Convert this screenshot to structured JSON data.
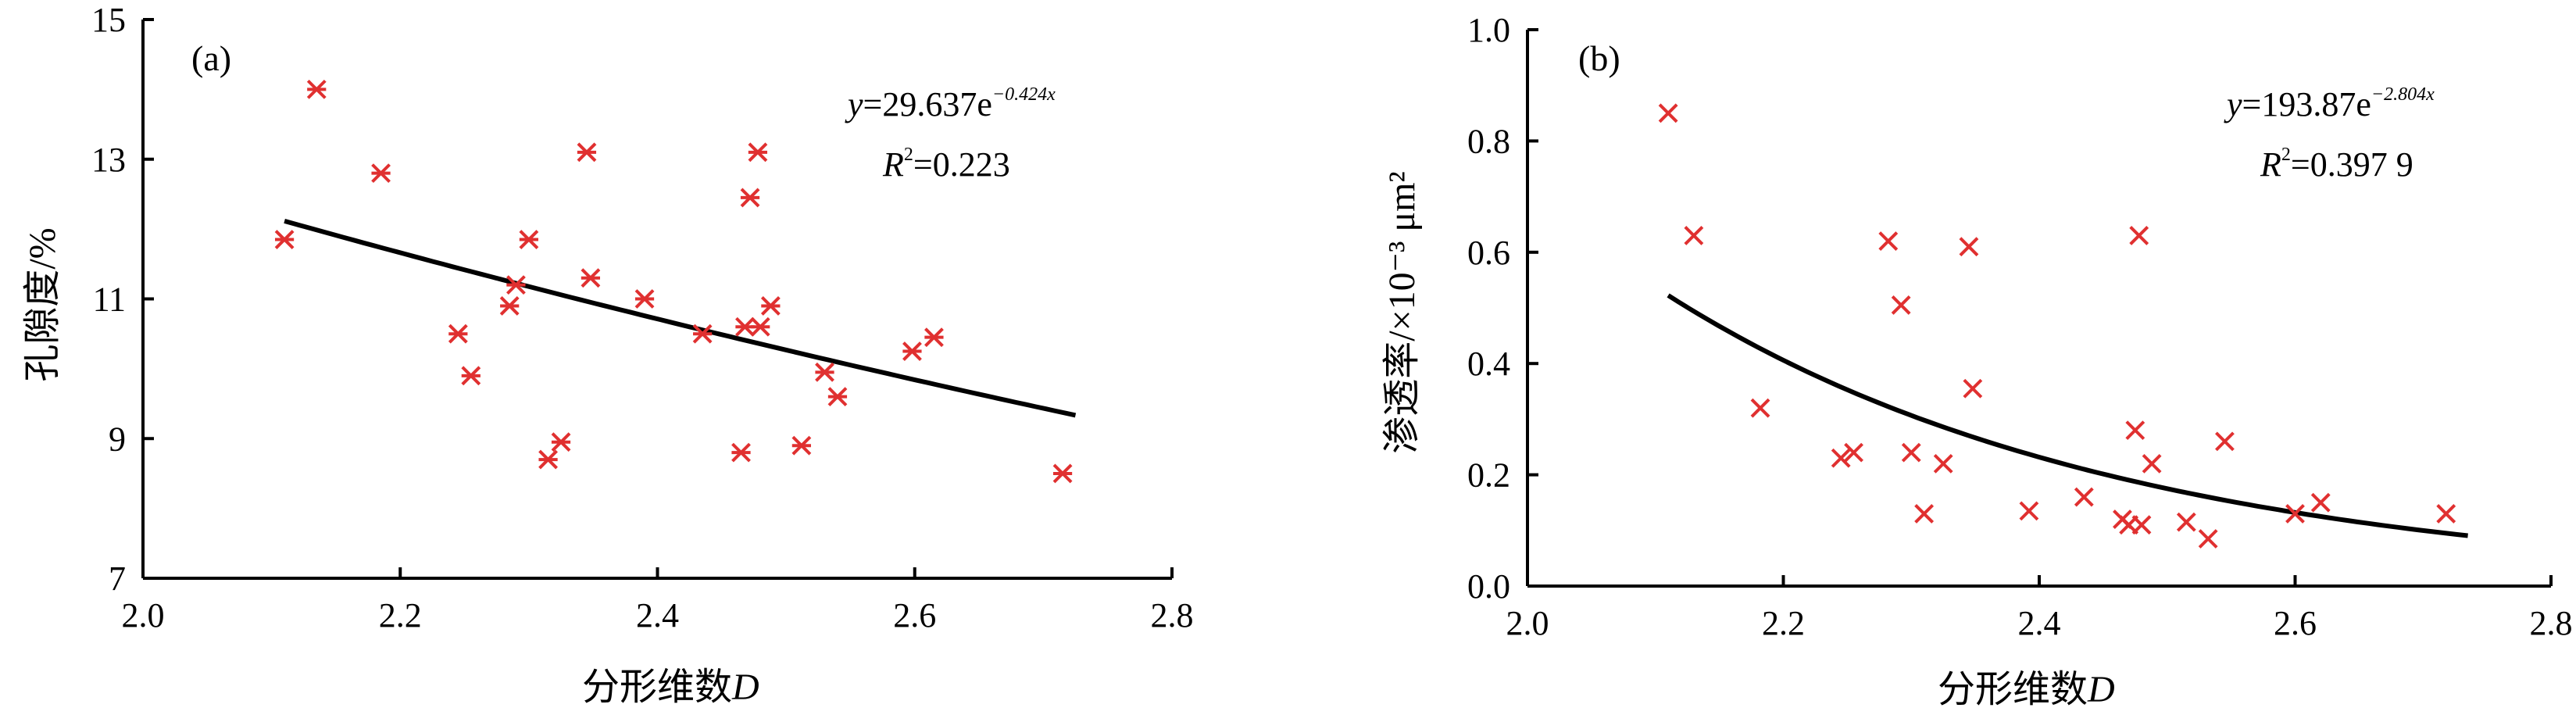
{
  "chart_data": [
    {
      "id": "a",
      "type": "scatter",
      "panel_label": "(a)",
      "xlabel": "分形维数D",
      "ylabel": "孔隙度/%",
      "xlim": [
        2.0,
        2.8
      ],
      "ylim": [
        7,
        15
      ],
      "x_ticks": [
        "2.0",
        "2.2",
        "2.4",
        "2.6",
        "2.8"
      ],
      "y_ticks": [
        "7",
        "9",
        "11",
        "13",
        "15"
      ],
      "marker": "asterisk",
      "marker_color": "#e03030",
      "fit": {
        "type": "exponential",
        "a": 29.637,
        "b": -0.424,
        "x_range": [
          2.11,
          2.725
        ]
      },
      "equation": {
        "y_prefix": "y",
        "coef": "=29.637e",
        "exponent": "−0.424x",
        "r2_label": "R",
        "r2_value": "=0.223"
      },
      "points": [
        [
          2.11,
          11.85
        ],
        [
          2.135,
          14.0
        ],
        [
          2.185,
          12.8
        ],
        [
          2.245,
          10.5
        ],
        [
          2.255,
          9.9
        ],
        [
          2.285,
          10.9
        ],
        [
          2.29,
          11.2
        ],
        [
          2.3,
          11.85
        ],
        [
          2.315,
          8.7
        ],
        [
          2.325,
          8.95
        ],
        [
          2.345,
          13.1
        ],
        [
          2.348,
          11.3
        ],
        [
          2.39,
          11.0
        ],
        [
          2.435,
          10.5
        ],
        [
          2.465,
          8.8
        ],
        [
          2.468,
          10.6
        ],
        [
          2.472,
          12.45
        ],
        [
          2.478,
          13.1
        ],
        [
          2.48,
          10.6
        ],
        [
          2.488,
          10.9
        ],
        [
          2.512,
          8.9
        ],
        [
          2.53,
          9.95
        ],
        [
          2.54,
          9.6
        ],
        [
          2.598,
          10.25
        ],
        [
          2.615,
          10.45
        ],
        [
          2.715,
          8.5
        ]
      ]
    },
    {
      "id": "b",
      "type": "scatter",
      "panel_label": "(b)",
      "xlabel": "分形维数D",
      "ylabel": "渗透率/×10⁻³ μm²",
      "xlim": [
        2.0,
        2.8
      ],
      "ylim": [
        0.0,
        1.0
      ],
      "x_ticks": [
        "2.0",
        "2.2",
        "2.4",
        "2.6",
        "2.8"
      ],
      "y_ticks": [
        "0.0",
        "0.2",
        "0.4",
        "0.6",
        "0.8",
        "1.0"
      ],
      "marker": "x",
      "marker_color": "#e03030",
      "fit": {
        "type": "exponential",
        "a": 193.87,
        "b": -2.804,
        "x_range": [
          2.11,
          2.735
        ]
      },
      "equation": {
        "y_prefix": "y",
        "coef": "=193.87e",
        "exponent": "−2.804x",
        "r2_label": "R",
        "r2_value": "=0.397 9"
      },
      "points": [
        [
          2.11,
          0.85
        ],
        [
          2.13,
          0.63
        ],
        [
          2.182,
          0.32
        ],
        [
          2.245,
          0.23
        ],
        [
          2.255,
          0.24
        ],
        [
          2.282,
          0.62
        ],
        [
          2.292,
          0.505
        ],
        [
          2.3,
          0.24
        ],
        [
          2.31,
          0.13
        ],
        [
          2.325,
          0.22
        ],
        [
          2.345,
          0.61
        ],
        [
          2.348,
          0.355
        ],
        [
          2.392,
          0.135
        ],
        [
          2.435,
          0.16
        ],
        [
          2.465,
          0.12
        ],
        [
          2.47,
          0.11
        ],
        [
          2.475,
          0.28
        ],
        [
          2.478,
          0.63
        ],
        [
          2.48,
          0.11
        ],
        [
          2.488,
          0.22
        ],
        [
          2.515,
          0.115
        ],
        [
          2.532,
          0.085
        ],
        [
          2.545,
          0.26
        ],
        [
          2.6,
          0.13
        ],
        [
          2.62,
          0.15
        ],
        [
          2.718,
          0.13
        ]
      ]
    }
  ]
}
